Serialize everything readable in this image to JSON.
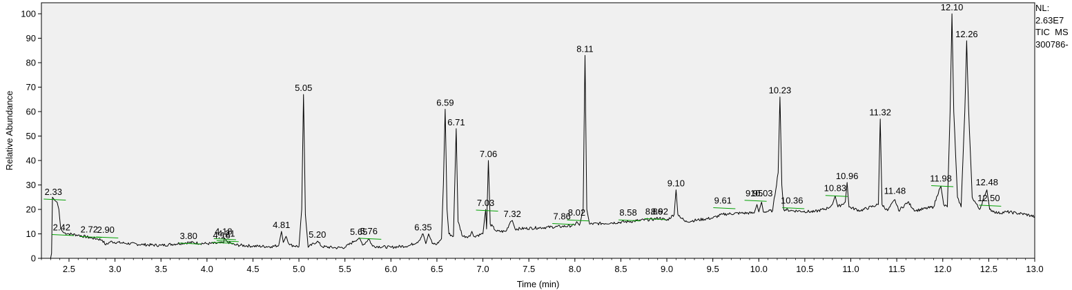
{
  "info": {
    "nl_label": "NL:",
    "nl_value": "2.63E7",
    "filter": "TIC  MS",
    "sample": "300786-"
  },
  "chart_data": {
    "type": "line",
    "title": "",
    "xlabel": "Time (min)",
    "ylabel": "Relative Abundance",
    "xlim": [
      2.2,
      13.0
    ],
    "ylim": [
      0,
      100
    ],
    "grid": false,
    "x_ticks": [
      2.5,
      3.0,
      3.5,
      4.0,
      4.5,
      5.0,
      5.5,
      6.0,
      6.5,
      7.0,
      7.5,
      8.0,
      8.5,
      9.0,
      9.5,
      10.0,
      10.5,
      11.0,
      11.5,
      12.0,
      12.5,
      13.0
    ],
    "x_tick_labels": [
      "2.5",
      "3.0",
      "3.5",
      "4.0",
      "4.5",
      "5.0",
      "5.5",
      "6.0",
      "6.5",
      "7.0",
      "7.5",
      "8.0",
      "8.5",
      "9.0",
      "9.5",
      "10.0",
      "10.5",
      "11.0",
      "11.5",
      "12.0",
      "12.5",
      "13.0"
    ],
    "y_ticks": [
      0,
      10,
      20,
      30,
      40,
      50,
      60,
      70,
      80,
      90,
      100
    ],
    "y_tick_labels": [
      "0",
      "10",
      "20",
      "30",
      "40",
      "50",
      "60",
      "70",
      "80",
      "90",
      "100"
    ],
    "series": [
      {
        "color": "#000000",
        "points": [
          [
            2.3,
            0
          ],
          [
            2.31,
            2
          ],
          [
            2.32,
            25
          ],
          [
            2.33,
            24.5
          ],
          [
            2.35,
            23.5
          ],
          [
            2.37,
            23
          ],
          [
            2.39,
            20
          ],
          [
            2.41,
            12
          ],
          [
            2.44,
            10.5
          ],
          [
            2.5,
            10
          ],
          [
            2.6,
            9.5
          ],
          [
            2.72,
            8.5
          ],
          [
            2.8,
            8
          ],
          [
            2.86,
            7.5
          ],
          [
            2.9,
            5.5
          ],
          [
            2.95,
            6.8
          ],
          [
            3.1,
            6.2
          ],
          [
            3.3,
            5.6
          ],
          [
            3.5,
            5.3
          ],
          [
            3.8,
            6.5
          ],
          [
            4.0,
            6.0
          ],
          [
            4.18,
            6.2
          ],
          [
            4.19,
            8.3
          ],
          [
            4.22,
            6.8
          ],
          [
            4.3,
            5.5
          ],
          [
            4.5,
            5.0
          ],
          [
            4.7,
            4.8
          ],
          [
            4.78,
            5.3
          ],
          [
            4.81,
            11
          ],
          [
            4.83,
            6.5
          ],
          [
            4.86,
            9
          ],
          [
            4.9,
            5.5
          ],
          [
            5.0,
            4.8
          ],
          [
            5.03,
            20
          ],
          [
            5.05,
            67
          ],
          [
            5.07,
            18
          ],
          [
            5.1,
            4.5
          ],
          [
            5.2,
            7
          ],
          [
            5.25,
            4.8
          ],
          [
            5.4,
            4.3
          ],
          [
            5.5,
            4.5
          ],
          [
            5.6,
            7
          ],
          [
            5.65,
            8.2
          ],
          [
            5.7,
            5.5
          ],
          [
            5.76,
            8
          ],
          [
            5.8,
            5.0
          ],
          [
            6.0,
            4.5
          ],
          [
            6.2,
            5.2
          ],
          [
            6.3,
            7
          ],
          [
            6.35,
            10
          ],
          [
            6.38,
            6
          ],
          [
            6.41,
            10
          ],
          [
            6.45,
            6
          ],
          [
            6.5,
            5.8
          ],
          [
            6.55,
            8
          ],
          [
            6.57,
            30
          ],
          [
            6.59,
            61
          ],
          [
            6.61,
            20
          ],
          [
            6.63,
            10
          ],
          [
            6.68,
            9
          ],
          [
            6.69,
            25
          ],
          [
            6.71,
            53
          ],
          [
            6.73,
            15
          ],
          [
            6.78,
            9
          ],
          [
            6.86,
            9
          ],
          [
            6.88,
            11
          ],
          [
            6.9,
            9
          ],
          [
            7.0,
            10
          ],
          [
            7.03,
            20
          ],
          [
            7.04,
            12
          ],
          [
            7.06,
            40
          ],
          [
            7.08,
            14
          ],
          [
            7.15,
            11
          ],
          [
            7.25,
            11
          ],
          [
            7.3,
            15
          ],
          [
            7.32,
            15.5
          ],
          [
            7.35,
            12
          ],
          [
            7.6,
            12.5
          ],
          [
            7.86,
            13
          ],
          [
            8.0,
            13.5
          ],
          [
            8.02,
            15
          ],
          [
            8.05,
            13.5
          ],
          [
            8.09,
            20
          ],
          [
            8.11,
            83
          ],
          [
            8.13,
            20
          ],
          [
            8.16,
            14
          ],
          [
            8.4,
            14.5
          ],
          [
            8.58,
            15
          ],
          [
            8.7,
            15.5
          ],
          [
            8.86,
            16
          ],
          [
            8.92,
            16.5
          ],
          [
            9.0,
            15.5
          ],
          [
            9.08,
            18
          ],
          [
            9.1,
            28
          ],
          [
            9.12,
            18
          ],
          [
            9.2,
            15
          ],
          [
            9.5,
            16.5
          ],
          [
            9.61,
            18
          ],
          [
            9.8,
            18.5
          ],
          [
            9.95,
            18.5
          ],
          [
            9.98,
            22
          ],
          [
            10.0,
            19
          ],
          [
            10.03,
            23
          ],
          [
            10.05,
            19
          ],
          [
            10.15,
            19.5
          ],
          [
            10.21,
            35
          ],
          [
            10.23,
            66
          ],
          [
            10.25,
            30
          ],
          [
            10.27,
            20
          ],
          [
            10.36,
            19.5
          ],
          [
            10.6,
            19
          ],
          [
            10.75,
            20.5
          ],
          [
            10.8,
            22
          ],
          [
            10.83,
            25.5
          ],
          [
            10.86,
            21
          ],
          [
            10.94,
            23
          ],
          [
            10.96,
            31
          ],
          [
            10.98,
            21
          ],
          [
            11.1,
            19.5
          ],
          [
            11.3,
            22
          ],
          [
            11.32,
            57
          ],
          [
            11.34,
            22
          ],
          [
            11.4,
            19.5
          ],
          [
            11.48,
            24
          ],
          [
            11.52,
            19.5
          ],
          [
            11.62,
            23
          ],
          [
            11.7,
            19.5
          ],
          [
            11.9,
            21
          ],
          [
            11.96,
            28
          ],
          [
            11.98,
            29.5
          ],
          [
            12.01,
            22
          ],
          [
            12.05,
            21
          ],
          [
            12.08,
            60
          ],
          [
            12.1,
            100
          ],
          [
            12.12,
            60
          ],
          [
            12.16,
            25
          ],
          [
            12.2,
            21
          ],
          [
            12.24,
            60
          ],
          [
            12.26,
            89
          ],
          [
            12.28,
            62
          ],
          [
            12.32,
            25
          ],
          [
            12.4,
            20
          ],
          [
            12.46,
            26
          ],
          [
            12.48,
            28
          ],
          [
            12.51,
            20
          ],
          [
            12.6,
            18.5
          ],
          [
            12.7,
            19
          ],
          [
            12.8,
            18.5
          ],
          [
            12.9,
            18
          ],
          [
            13.0,
            17
          ]
        ]
      }
    ],
    "peak_labels": [
      {
        "x": 2.33,
        "y": 24.5,
        "label": "2.33",
        "baseline": true
      },
      {
        "x": 2.42,
        "y": 10,
        "label": "2.42",
        "baseline": true
      },
      {
        "x": 2.72,
        "y": 9.2,
        "label": "2.72",
        "baseline": true
      },
      {
        "x": 2.9,
        "y": 9.0,
        "label": "2.90",
        "baseline": true
      },
      {
        "x": 3.8,
        "y": 6.5,
        "label": "3.80",
        "baseline": true
      },
      {
        "x": 4.16,
        "y": 6.8,
        "label": "4.16",
        "baseline": true
      },
      {
        "x": 4.18,
        "y": 8.3,
        "label": "4.18",
        "baseline": true
      },
      {
        "x": 4.21,
        "y": 7.5,
        "label": "4.21",
        "baseline": true
      },
      {
        "x": 4.81,
        "y": 11,
        "label": "4.81",
        "baseline": false
      },
      {
        "x": 5.05,
        "y": 67,
        "label": "5.05",
        "baseline": false
      },
      {
        "x": 5.2,
        "y": 7,
        "label": "5.20",
        "baseline": false
      },
      {
        "x": 5.65,
        "y": 8.2,
        "label": "5.65",
        "baseline": false
      },
      {
        "x": 5.76,
        "y": 8.5,
        "label": "5.76",
        "baseline": true
      },
      {
        "x": 6.35,
        "y": 10,
        "label": "6.35",
        "baseline": false
      },
      {
        "x": 6.59,
        "y": 61,
        "label": "6.59",
        "baseline": false
      },
      {
        "x": 6.71,
        "y": 53,
        "label": "6.71",
        "baseline": false
      },
      {
        "x": 7.03,
        "y": 20,
        "label": "7.03",
        "baseline": true
      },
      {
        "x": 7.06,
        "y": 40,
        "label": "7.06",
        "baseline": false
      },
      {
        "x": 7.32,
        "y": 15.5,
        "label": "7.32",
        "baseline": false
      },
      {
        "x": 7.86,
        "y": 14.5,
        "label": "7.86",
        "baseline": true
      },
      {
        "x": 8.02,
        "y": 16,
        "label": "8.02",
        "baseline": true
      },
      {
        "x": 8.11,
        "y": 83,
        "label": "8.11",
        "baseline": false
      },
      {
        "x": 8.58,
        "y": 16,
        "label": "8.58",
        "baseline": true
      },
      {
        "x": 8.86,
        "y": 16.5,
        "label": "8.86",
        "baseline": true
      },
      {
        "x": 8.92,
        "y": 16.5,
        "label": "8.92",
        "baseline": false
      },
      {
        "x": 9.1,
        "y": 28,
        "label": "9.10",
        "baseline": false
      },
      {
        "x": 9.61,
        "y": 21,
        "label": "9.61",
        "baseline": true
      },
      {
        "x": 9.95,
        "y": 24,
        "label": "9.95",
        "baseline": true
      },
      {
        "x": 10.03,
        "y": 24,
        "label": "10.03",
        "baseline": false
      },
      {
        "x": 10.23,
        "y": 66,
        "label": "10.23",
        "baseline": false
      },
      {
        "x": 10.36,
        "y": 21,
        "label": "10.36",
        "baseline": true
      },
      {
        "x": 10.83,
        "y": 26,
        "label": "10.83",
        "baseline": true
      },
      {
        "x": 10.96,
        "y": 31,
        "label": "10.96",
        "baseline": false
      },
      {
        "x": 11.32,
        "y": 57,
        "label": "11.32",
        "baseline": false
      },
      {
        "x": 11.48,
        "y": 25,
        "label": "11.48",
        "baseline": false
      },
      {
        "x": 11.98,
        "y": 30,
        "label": "11.98",
        "baseline": true
      },
      {
        "x": 12.1,
        "y": 100,
        "label": "12.10",
        "baseline": false
      },
      {
        "x": 12.26,
        "y": 89,
        "label": "12.26",
        "baseline": false
      },
      {
        "x": 12.48,
        "y": 28.5,
        "label": "12.48",
        "baseline": false
      },
      {
        "x": 12.5,
        "y": 22,
        "label": "12.50",
        "baseline": true
      }
    ],
    "colors": {
      "trace": "#000000",
      "baseline_marks": "#00a000",
      "plot_background": "#f0f0f0"
    }
  }
}
